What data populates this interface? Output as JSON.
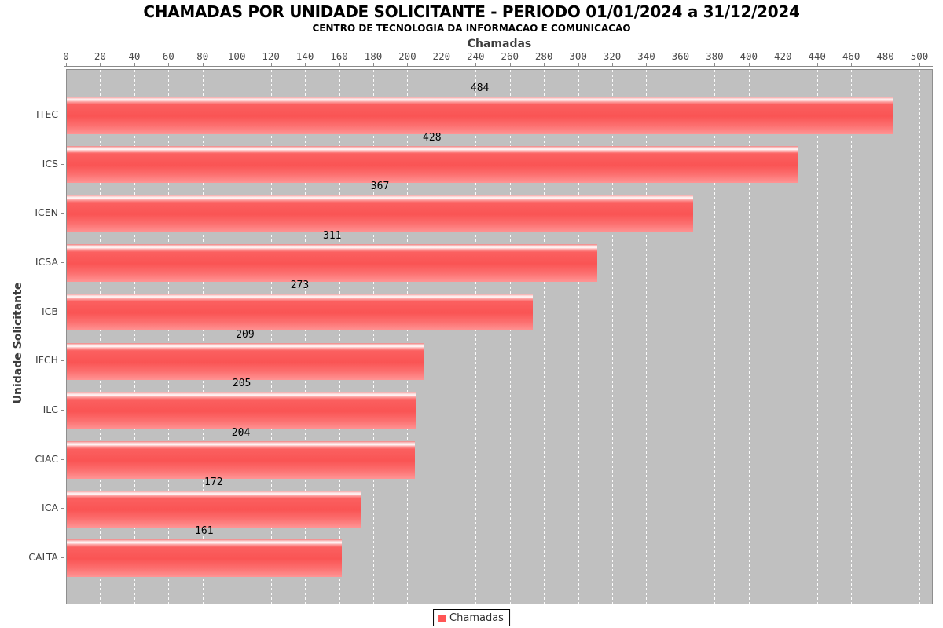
{
  "chart_data": {
    "type": "bar",
    "orientation": "horizontal",
    "title": "CHAMADAS POR UNIDADE SOLICITANTE - PERIODO 01/01/2024 a 31/12/2024",
    "subtitle": "CENTRO DE TECNOLOGIA DA INFORMACAO E COMUNICACAO",
    "xlabel": "Chamadas",
    "ylabel": "Unidade Solicitante",
    "categories": [
      "ITEC",
      "ICS",
      "ICEN",
      "ICSA",
      "ICB",
      "IFCH",
      "ILC",
      "CIAC",
      "ICA",
      "CALTA"
    ],
    "series": [
      {
        "name": "Chamadas",
        "values": [
          484,
          428,
          367,
          311,
          273,
          209,
          205,
          204,
          172,
          161
        ]
      }
    ],
    "value_labels_shown": true,
    "xlim": [
      0,
      508
    ],
    "xticks": [
      0,
      20,
      40,
      60,
      80,
      100,
      120,
      140,
      160,
      180,
      200,
      220,
      240,
      260,
      280,
      300,
      320,
      340,
      360,
      380,
      400,
      420,
      440,
      460,
      480,
      500
    ],
    "grid": "vertical dashed white gridlines on gray plot background",
    "legend": {
      "position": "bottom-center",
      "entries": [
        {
          "label": "Chamadas",
          "color": "#ff5555"
        }
      ]
    },
    "colors": {
      "bar_base": "#fa5454",
      "bar_highlight": "#fffafa",
      "bar_bottom": "#ff9494",
      "plot_background": "#c0c0c0",
      "gridline": "#ffffff",
      "axis_line": "#8a8a8a",
      "tick_label": "#4a4a4a",
      "category_label": "#404040",
      "value_label": "#000000",
      "title": "#000000",
      "page_background": "#ffffff"
    }
  }
}
